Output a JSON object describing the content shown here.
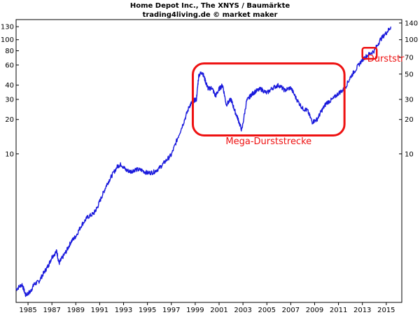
{
  "chart_data": {
    "type": "line",
    "title": "Home Depot Inc., The XNYS / Baumärkte",
    "subtitle": "trading4living.de © market maker",
    "y_scale": "log",
    "grid": false,
    "xlim": [
      1984.0,
      2016.3
    ],
    "ylim": [
      0.5,
      150
    ],
    "x_ticks": [
      1985,
      1987,
      1989,
      1991,
      1993,
      1995,
      1997,
      1999,
      2001,
      2003,
      2005,
      2007,
      2009,
      2011,
      2013,
      2015
    ],
    "x_tick_labels": [
      "1985",
      "1987",
      "1989",
      "1991",
      "1993",
      "1995",
      "1997",
      "1999",
      "2001",
      "2003",
      "2005",
      "2007",
      "2009",
      "2011",
      "2013",
      "2015"
    ],
    "y_ticks_left": [
      130,
      100,
      80,
      60,
      40,
      30,
      20,
      10
    ],
    "y_tick_labels_left": [
      "130",
      "100",
      "80",
      "60",
      "40",
      "30",
      "20",
      "10"
    ],
    "y_ticks_right": [
      140,
      100,
      70,
      50,
      30,
      20,
      10
    ],
    "y_tick_labels_right": [
      "140",
      "100",
      "70",
      "50",
      "30",
      "20",
      "10"
    ],
    "series_color": "#1a1adc",
    "annotation_color": "#ee1111",
    "series": [
      {
        "x": [
          1984.0,
          1984.5,
          1984.8,
          1985.2,
          1985.5,
          1985.9,
          1986.3,
          1986.7,
          1987.0,
          1987.4,
          1987.6,
          1987.8,
          1988.2,
          1988.6,
          1989.0,
          1989.5,
          1990.0,
          1990.5,
          1990.8,
          1991.2,
          1991.6,
          1992.0,
          1992.5,
          1992.8,
          1993.2,
          1993.6,
          1994.0,
          1994.5,
          1995.0,
          1995.5,
          1996.0,
          1996.5,
          1997.0,
          1997.5,
          1998.0,
          1998.5,
          1998.8,
          1999.1,
          1999.3,
          1999.6,
          1999.9,
          2000.1,
          2000.4,
          2000.7,
          2001.0,
          2001.3,
          2001.6,
          2002.0,
          2002.3,
          2002.6,
          2002.9,
          2003.3,
          2003.7,
          2004.0,
          2004.5,
          2005.0,
          2005.5,
          2006.0,
          2006.5,
          2007.0,
          2007.5,
          2008.0,
          2008.4,
          2008.8,
          2009.2,
          2009.6,
          2010.0,
          2010.5,
          2011.0,
          2011.5,
          2012.0,
          2012.5,
          2013.0,
          2013.5,
          2014.0,
          2014.5,
          2015.0,
          2015.4
        ],
        "values": [
          0.65,
          0.72,
          0.58,
          0.62,
          0.72,
          0.76,
          0.9,
          1.05,
          1.25,
          1.4,
          1.1,
          1.2,
          1.4,
          1.7,
          1.9,
          2.4,
          2.8,
          3.0,
          3.4,
          4.3,
          5.4,
          6.4,
          7.8,
          8.1,
          7.2,
          7.0,
          7.3,
          7.2,
          6.8,
          6.9,
          7.5,
          8.6,
          9.8,
          13.5,
          18.5,
          26.0,
          29.0,
          30.0,
          49.0,
          52.0,
          42.0,
          37.0,
          38.0,
          32.0,
          37.0,
          40.0,
          27.0,
          30.0,
          24.0,
          20.0,
          16.0,
          29.0,
          33.0,
          35.0,
          37.0,
          34.0,
          38.0,
          40.0,
          36.0,
          38.0,
          30.0,
          25.0,
          24.0,
          19.0,
          20.0,
          24.0,
          28.0,
          30.0,
          34.0,
          37.0,
          47.0,
          56.0,
          67.0,
          74.0,
          80.0,
          100.0,
          115.0,
          130.0
        ]
      }
    ],
    "annotations": [
      {
        "text": "Mega-Durststrecke",
        "x_range": [
          1998.8,
          2011.5
        ],
        "y_range": [
          14.5,
          62.0
        ]
      },
      {
        "text": "Durststr",
        "x_range": [
          2013.0,
          2014.2
        ],
        "y_range": [
          68.0,
          85.0
        ]
      }
    ]
  }
}
